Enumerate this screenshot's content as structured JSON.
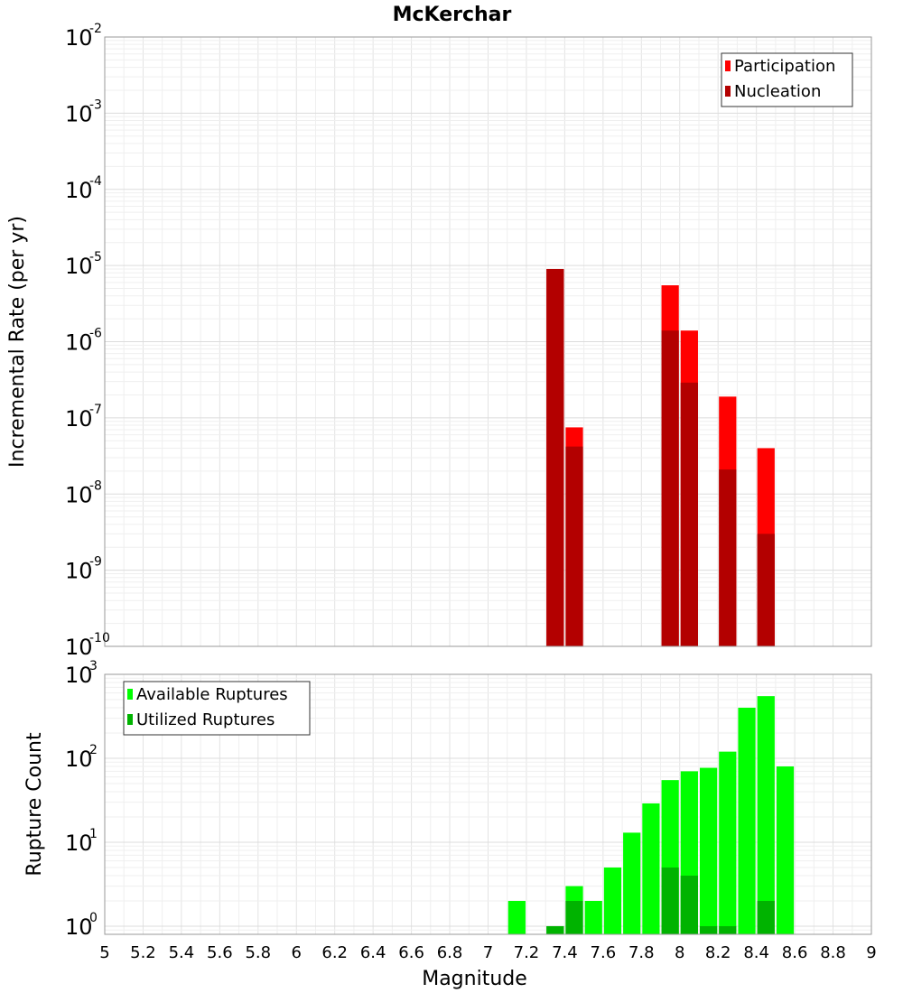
{
  "chart_data": [
    {
      "type": "bar",
      "title": "McKerchar",
      "xlabel": "",
      "ylabel": "Incremental Rate (per yr)",
      "yscale": "log",
      "ylim": [
        1e-10,
        0.01
      ],
      "xlim": [
        5,
        9
      ],
      "bar_width": 0.1,
      "grid": true,
      "legend_position": "top-right",
      "series": [
        {
          "name": "Participation",
          "color": "#ff0000",
          "x": [
            7.35,
            7.45,
            7.95,
            8.05,
            8.25,
            8.45
          ],
          "values": [
            9e-06,
            7.5e-08,
            5.5e-06,
            1.4e-06,
            1.9e-07,
            4e-08
          ]
        },
        {
          "name": "Nucleation",
          "color": "#b30000",
          "x": [
            7.35,
            7.45,
            7.95,
            8.05,
            8.25,
            8.45
          ],
          "values": [
            9e-06,
            4.2e-08,
            1.4e-06,
            2.9e-07,
            2.1e-08,
            3e-09
          ]
        }
      ]
    },
    {
      "type": "bar",
      "title": "",
      "xlabel": "Magnitude",
      "ylabel": "Rupture Count",
      "yscale": "log",
      "ylim": [
        0.8,
        1000
      ],
      "xlim": [
        5,
        9
      ],
      "bar_width": 0.1,
      "grid": true,
      "legend_position": "top-left",
      "x_ticks": [
        "5",
        "5.2",
        "5.4",
        "5.6",
        "5.8",
        "6",
        "6.2",
        "6.4",
        "6.6",
        "6.8",
        "7",
        "7.2",
        "7.4",
        "7.6",
        "7.8",
        "8",
        "8.2",
        "8.4",
        "8.6",
        "8.8",
        "9"
      ],
      "series": [
        {
          "name": "Available Ruptures",
          "color": "#00ff00",
          "x": [
            7.15,
            7.35,
            7.45,
            7.55,
            7.65,
            7.75,
            7.85,
            7.95,
            8.05,
            8.15,
            8.25,
            8.35,
            8.45,
            8.55
          ],
          "values": [
            2,
            1,
            3,
            2,
            5,
            13,
            29,
            55,
            70,
            77,
            120,
            400,
            550,
            80
          ]
        },
        {
          "name": "Utilized Ruptures",
          "color": "#00b300",
          "x": [
            7.35,
            7.45,
            7.95,
            8.05,
            8.15,
            8.25,
            8.45
          ],
          "values": [
            1,
            2,
            5,
            4,
            1,
            1,
            2
          ]
        }
      ]
    }
  ]
}
